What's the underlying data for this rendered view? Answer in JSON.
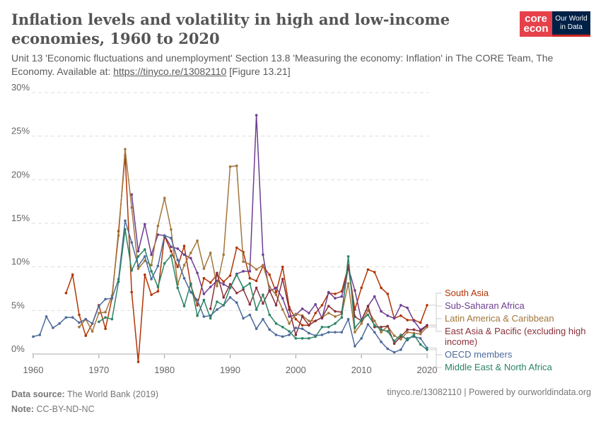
{
  "title": "Inflation levels and volatility in high and low-income economies, 1960 to 2020",
  "subtitle_pre": "Unit 13 'Economic fluctuations and unemployment' Section 13.8 'Measuring the economy: Inflation' in The CORE Team, The Economy. Available at: ",
  "subtitle_link": "https://tinyco.re/13082110",
  "subtitle_post": " [Figure 13.21]",
  "logo": {
    "left_line1": "core",
    "left_line2": "econ",
    "right_line1": "Our World",
    "right_line2": "in Data"
  },
  "footer": {
    "source_label": "Data source:",
    "source": "The World Bank (2019)",
    "note_label": "Note:",
    "note": "CC-BY-ND-NC",
    "right": "tinyco.re/13082110 | Powered by ourworldindata.org"
  },
  "chart_data": {
    "type": "line",
    "xlim": [
      1960,
      2020
    ],
    "ylim": [
      0,
      30
    ],
    "yticks": [
      "0%",
      "5%",
      "10%",
      "15%",
      "20%",
      "25%",
      "30%"
    ],
    "xticks": [
      "1960",
      "1970",
      "1980",
      "1990",
      "2000",
      "2010",
      "2020"
    ],
    "grid": true,
    "legend": "right",
    "series": [
      {
        "name": "South Asia",
        "color": "#b13507",
        "start": 1965,
        "values": [
          7.0,
          9.1,
          4.5,
          2.1,
          3.5,
          5.6,
          2.9,
          6.4,
          14.1,
          22.8,
          7.1,
          -0.9,
          9.1,
          6.8,
          7.2,
          13.5,
          11.8,
          10.0,
          12.4,
          7.9,
          5.6,
          8.7,
          8.2,
          9.1,
          8.3,
          9.0,
          12.2,
          11.7,
          8.7,
          8.4,
          10.1,
          9.1,
          7.1,
          10.0,
          5.4,
          4.0,
          3.3,
          3.3,
          4.7,
          5.6,
          7.0,
          6.9,
          7.2,
          10.1,
          5.1,
          7.6,
          9.7,
          9.4,
          7.6,
          6.9,
          4.1,
          4.4,
          3.9,
          3.9,
          3.6,
          5.6
        ]
      },
      {
        "name": "Sub-Saharan Africa",
        "color": "#6d3e91",
        "start": 1975,
        "values": [
          18.3,
          11.8,
          14.9,
          11.4,
          13.7,
          13.6,
          12.3,
          12.1,
          11.4,
          11.0,
          9.3,
          6.9,
          7.7,
          8.4,
          8.0,
          7.6,
          9.2,
          9.5,
          9.5,
          27.4,
          11.4,
          7.2,
          7.6,
          6.4,
          4.3,
          4.5,
          5.2,
          4.7,
          5.7,
          4.1,
          7.1,
          6.4,
          6.6,
          9.9,
          7.3,
          3.9,
          5.5,
          6.6,
          4.9,
          4.4,
          4.1,
          5.6,
          5.3,
          3.8,
          2.8,
          3.3
        ]
      },
      {
        "name": "Latin America & Caribbean",
        "color": "#a2763c",
        "start": 1967,
        "values": [
          3.1,
          4.0,
          2.6,
          4.7,
          4.8,
          6.7,
          13.6,
          23.5,
          16.8,
          9.8,
          10.7,
          10.2,
          14.7,
          17.9,
          14.3,
          8.0,
          10.2,
          11.6,
          13.0,
          9.8,
          11.6,
          7.8,
          11.4,
          21.5,
          21.6,
          10.6,
          10.3,
          9.7,
          10.2,
          7.7,
          6.8,
          5.1,
          3.5,
          4.6,
          4.4,
          3.8,
          3.8,
          4.2,
          4.7,
          4.3,
          4.6,
          8.1,
          2.5,
          3.5,
          5.0,
          3.8,
          2.5,
          3.2,
          2.1,
          1.7,
          2.5,
          2.4,
          2.3,
          3.1
        ]
      },
      {
        "name": "East Asia & Pacific (excluding high income)",
        "color": "#883039",
        "start": 1987,
        "values": [
          5.2,
          9.3,
          6.5,
          8.0,
          7.0,
          7.4,
          5.7,
          7.6,
          5.8,
          7.3,
          5.6,
          8.6,
          5.1,
          2.2,
          4.3,
          3.3,
          3.8,
          4.2,
          5.5,
          4.9,
          4.8,
          10.2,
          4.3,
          3.8,
          5.5,
          3.1,
          3.1,
          3.2,
          1.2,
          2.0,
          2.8,
          2.8,
          2.6,
          3.3
        ]
      },
      {
        "name": "OECD members",
        "color": "#4c6a9c",
        "start": 1960,
        "values": [
          2.0,
          2.2,
          4.3,
          3.0,
          3.5,
          4.2,
          4.2,
          3.6,
          4.0,
          3.5,
          5.5,
          6.3,
          6.4,
          8.6,
          15.3,
          12.8,
          10.1,
          11.2,
          8.6,
          10.1,
          13.6,
          13.3,
          10.8,
          8.7,
          7.1,
          6.2,
          4.3,
          4.4,
          5.1,
          5.6,
          6.5,
          5.9,
          4.1,
          4.5,
          2.9,
          4.0,
          2.8,
          2.2,
          2.0,
          2.2,
          3.0,
          2.9,
          2.4,
          2.1,
          2.2,
          2.5,
          2.5,
          2.5,
          4.0,
          0.9,
          1.8,
          3.4,
          2.5,
          1.4,
          0.6,
          0.2,
          0.5,
          1.8,
          2.0,
          1.8,
          0.7
        ]
      },
      {
        "name": "Middle East & North Africa",
        "color": "#2b8465",
        "start": 1970,
        "values": [
          3.7,
          4.2,
          4.0,
          8.3,
          14.3,
          9.6,
          11.2,
          12.0,
          9.5,
          7.7,
          10.4,
          11.3,
          7.6,
          5.5,
          8.1,
          4.4,
          6.2,
          4.1,
          6.0,
          5.6,
          7.6,
          9.1,
          7.6,
          8.1,
          5.1,
          6.8,
          4.5,
          3.5,
          3.1,
          2.6,
          1.8,
          1.8,
          1.8,
          2.0,
          3.1,
          3.1,
          3.5,
          4.2,
          11.2,
          3.0,
          3.9,
          4.5,
          3.3,
          2.8,
          2.6,
          1.5,
          2.2,
          1.6,
          2.2,
          1.1,
          0.5
        ]
      }
    ]
  }
}
